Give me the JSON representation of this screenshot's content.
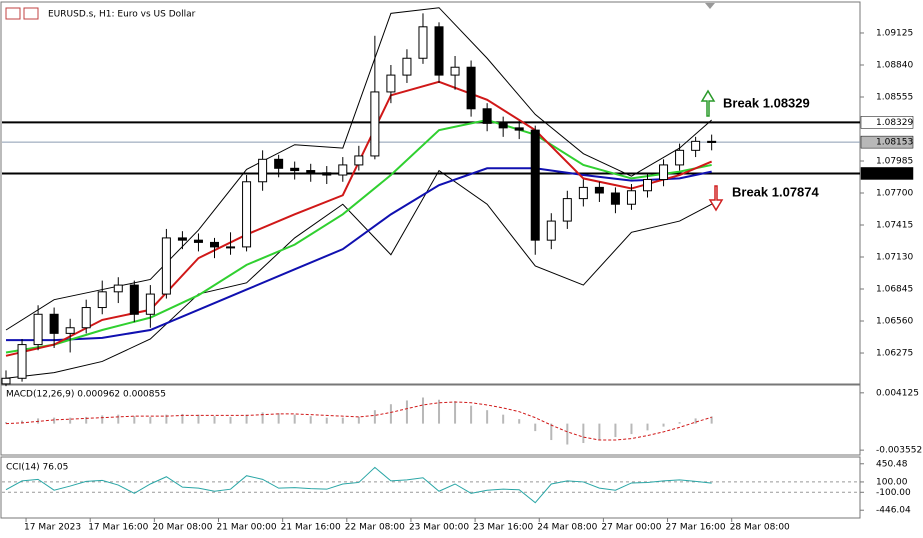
{
  "chart_data": [
    {
      "type": "candlestick",
      "title": "EURUSD.s, H1: Euro vs US Dollar",
      "xlim": [
        0,
        214
      ],
      "xticks": [
        {
          "value": 6,
          "label": "17 Mar 2023"
        },
        {
          "value": 22,
          "label": "17 Mar 16:00"
        },
        {
          "value": 38,
          "label": "20 Mar 08:00"
        },
        {
          "value": 54,
          "label": "21 Mar 00:00"
        },
        {
          "value": 70,
          "label": "21 Mar 16:00"
        },
        {
          "value": 86,
          "label": "22 Mar 08:00"
        },
        {
          "value": 102,
          "label": "23 Mar 00:00"
        },
        {
          "value": 118,
          "label": "23 Mar 16:00"
        },
        {
          "value": 134,
          "label": "24 Mar 08:00"
        },
        {
          "value": 150,
          "label": "27 Mar 00:00"
        },
        {
          "value": 166,
          "label": "27 Mar 16:00"
        },
        {
          "value": 182,
          "label": "28 Mar 08:00"
        }
      ],
      "ylim": [
        1.06008,
        1.09392
      ],
      "yticks": [
        {
          "value": 1.09125,
          "label": "1.09125"
        },
        {
          "value": 1.0884,
          "label": "1.08840"
        },
        {
          "value": 1.08555,
          "label": "1.08555"
        },
        {
          "value": 1.07985,
          "label": "1.07985"
        },
        {
          "value": 1.077,
          "label": "1.07700"
        },
        {
          "value": 1.07415,
          "label": "1.07415"
        },
        {
          "value": 1.0713,
          "label": "1.07130"
        },
        {
          "value": 1.06845,
          "label": "1.06845"
        },
        {
          "value": 1.0656,
          "label": "1.06560"
        },
        {
          "value": 1.06275,
          "label": "1.06275"
        }
      ],
      "x": [
        1,
        5,
        9,
        13,
        17,
        21,
        25,
        29,
        33,
        37,
        41,
        45,
        49,
        53,
        57,
        61,
        65,
        69,
        73,
        77,
        81,
        85,
        89,
        93,
        97,
        101,
        105,
        109,
        113,
        117,
        121,
        125,
        129,
        133,
        137,
        141,
        145,
        149,
        153,
        157,
        161,
        165,
        169,
        173,
        177
      ],
      "open": [
        1.06,
        1.0605,
        1.0635,
        1.0662,
        1.0645,
        1.065,
        1.0668,
        1.0682,
        1.0688,
        1.0662,
        1.068,
        1.073,
        1.0728,
        1.0726,
        1.0722,
        1.0722,
        1.078,
        1.08,
        1.0792,
        1.079,
        1.0788,
        1.0786,
        1.0795,
        1.0803,
        1.086,
        1.0875,
        1.089,
        1.0918,
        1.0875,
        1.0882,
        1.0845,
        1.0832,
        1.0828,
        1.0826,
        1.0728,
        1.0745,
        1.0765,
        1.0775,
        1.077,
        1.076,
        1.0772,
        1.0782,
        1.0795,
        1.0808,
        1.0816
      ],
      "high": [
        1.0612,
        1.064,
        1.067,
        1.0668,
        1.0658,
        1.0675,
        1.0692,
        1.0695,
        1.0692,
        1.0688,
        1.0738,
        1.0736,
        1.0734,
        1.073,
        1.0735,
        1.0786,
        1.0808,
        1.0804,
        1.0798,
        1.0796,
        1.0794,
        1.0802,
        1.0812,
        1.091,
        1.0884,
        1.0898,
        1.093,
        1.0922,
        1.0892,
        1.0888,
        1.085,
        1.0838,
        1.0834,
        1.083,
        1.0752,
        1.0772,
        1.0782,
        1.078,
        1.0775,
        1.0778,
        1.0788,
        1.08,
        1.0814,
        1.082,
        1.0822
      ],
      "low": [
        1.0598,
        1.0602,
        1.063,
        1.0632,
        1.0628,
        1.0645,
        1.0662,
        1.0672,
        1.0655,
        1.065,
        1.0676,
        1.072,
        1.0718,
        1.0712,
        1.0715,
        1.0718,
        1.0772,
        1.0784,
        1.0782,
        1.078,
        1.0778,
        1.078,
        1.079,
        1.08,
        1.085,
        1.0868,
        1.0885,
        1.0868,
        1.0862,
        1.0838,
        1.0825,
        1.082,
        1.0818,
        1.0715,
        1.072,
        1.0738,
        1.0758,
        1.0762,
        1.0752,
        1.0755,
        1.0766,
        1.0776,
        1.079,
        1.0802,
        1.0808
      ],
      "close": [
        1.0605,
        1.0635,
        1.0662,
        1.0645,
        1.065,
        1.0668,
        1.0682,
        1.0688,
        1.0662,
        1.068,
        1.073,
        1.0728,
        1.0726,
        1.0722,
        1.0722,
        1.078,
        1.08,
        1.0792,
        1.079,
        1.0788,
        1.0786,
        1.0795,
        1.0803,
        1.086,
        1.0875,
        1.089,
        1.0918,
        1.0875,
        1.0882,
        1.0845,
        1.0832,
        1.0828,
        1.0826,
        1.0728,
        1.0745,
        1.0765,
        1.0775,
        1.077,
        1.076,
        1.0772,
        1.0782,
        1.0795,
        1.0808,
        1.0816,
        1.0815
      ],
      "series": [
        {
          "color": "#000000",
          "x": [
            1,
            13,
            25,
            37,
            49,
            61,
            73,
            85,
            97,
            109,
            121,
            133,
            145,
            157,
            169,
            177
          ],
          "values": [
            1.0648,
            1.0675,
            1.0684,
            1.0693,
            1.0737,
            1.0791,
            1.0813,
            1.081,
            1.093,
            1.0935,
            1.089,
            1.084,
            1.0805,
            1.0785,
            1.081,
            1.0835
          ]
        },
        {
          "color": "#000000",
          "x": [
            1,
            13,
            25,
            37,
            49,
            61,
            73,
            85,
            97,
            109,
            121,
            133,
            145,
            157,
            169,
            177
          ],
          "values": [
            1.0605,
            1.061,
            1.062,
            1.064,
            1.068,
            1.069,
            1.073,
            1.076,
            1.0715,
            1.079,
            1.076,
            1.0705,
            1.0688,
            1.0735,
            1.0745,
            1.076
          ]
        },
        {
          "color": "#1010b0",
          "x": [
            1,
            13,
            25,
            37,
            49,
            61,
            73,
            85,
            97,
            109,
            121,
            133,
            145,
            157,
            169,
            177
          ],
          "values": [
            1.0639,
            1.0639,
            1.0641,
            1.0648,
            1.0666,
            1.0684,
            1.0702,
            1.072,
            1.0751,
            1.0777,
            1.0792,
            1.0792,
            1.0786,
            1.0781,
            1.0783,
            1.0789
          ]
        },
        {
          "color": "#30d030",
          "x": [
            1,
            13,
            25,
            37,
            49,
            61,
            73,
            85,
            97,
            109,
            121,
            133,
            145,
            157,
            169,
            177
          ],
          "values": [
            1.0628,
            1.0635,
            1.0648,
            1.0659,
            1.0679,
            1.0706,
            1.0724,
            1.0751,
            1.0786,
            1.0826,
            1.0835,
            1.0822,
            1.0795,
            1.0783,
            1.0789,
            1.0795
          ]
        },
        {
          "color": "#d01818",
          "x": [
            1,
            13,
            25,
            37,
            49,
            61,
            73,
            85,
            97,
            109,
            121,
            133,
            145,
            157,
            169,
            177
          ],
          "values": [
            1.0625,
            1.0635,
            1.0657,
            1.0666,
            1.0712,
            1.0733,
            1.0751,
            1.0768,
            1.0857,
            1.0869,
            1.0853,
            1.0826,
            1.0783,
            1.0774,
            1.0786,
            1.0798
          ]
        }
      ],
      "hlines": [
        {
          "value": 1.08329,
          "label": "1.08329",
          "color": "#000000"
        },
        {
          "value": 1.08153,
          "label": "1.08153",
          "color": "#8a9bb0"
        },
        {
          "value": 1.07874,
          "label": "1.07874",
          "color": "#000000"
        }
      ],
      "annotations": [
        "Break 1.08329",
        "Break 1.07874"
      ]
    },
    {
      "type": "macd",
      "label": "MACD(12,26,9) 0.000962 0.000855",
      "ylim": [
        -0.00407,
        0.00504
      ],
      "yticks": [
        0.004125,
        -0.003552
      ],
      "x": [
        1,
        5,
        9,
        13,
        17,
        21,
        25,
        29,
        33,
        37,
        41,
        45,
        49,
        53,
        57,
        61,
        65,
        69,
        73,
        77,
        81,
        85,
        89,
        93,
        97,
        101,
        105,
        109,
        113,
        117,
        121,
        125,
        129,
        133,
        137,
        141,
        145,
        149,
        153,
        157,
        161,
        165,
        169,
        173,
        177
      ],
      "histogram": [
        0.0002,
        0.0004,
        0.0007,
        0.0008,
        0.0008,
        0.0009,
        0.0011,
        0.0012,
        0.001,
        0.0009,
        0.0012,
        0.0013,
        0.0012,
        0.001,
        0.0009,
        0.0012,
        0.0015,
        0.0014,
        0.0012,
        0.001,
        0.0008,
        0.0008,
        0.0009,
        0.0018,
        0.0026,
        0.0031,
        0.0035,
        0.0032,
        0.003,
        0.0024,
        0.0018,
        0.0012,
        0.0006,
        -0.001,
        -0.0022,
        -0.0028,
        -0.0026,
        -0.0022,
        -0.0018,
        -0.0014,
        -0.0009,
        -0.0004,
        0.0002,
        0.0007,
        0.00096
      ],
      "signal": [
        0,
        0.0001,
        0.0003,
        0.0005,
        0.0006,
        0.0007,
        0.0008,
        0.0009,
        0.001,
        0.001,
        0.001,
        0.0011,
        0.0011,
        0.0011,
        0.0011,
        0.0011,
        0.0012,
        0.0013,
        0.0013,
        0.0012,
        0.0011,
        0.001,
        0.0009,
        0.0011,
        0.0015,
        0.002,
        0.0025,
        0.0028,
        0.0029,
        0.0028,
        0.0025,
        0.0021,
        0.0016,
        0.0008,
        -0.0002,
        -0.0011,
        -0.0018,
        -0.0022,
        -0.0022,
        -0.002,
        -0.0016,
        -0.0011,
        -0.0005,
        0.0002,
        0.000855
      ],
      "colors": {
        "histogram": "#b8b8b8",
        "signal": "#d01818"
      }
    },
    {
      "type": "cci",
      "label": "CCI(14) 76.05",
      "ylim": [
        -577,
        562
      ],
      "yticks": [
        {
          "value": 450.48,
          "label": "450.48"
        },
        {
          "value": 100,
          "label": "100.00"
        },
        {
          "value": -100,
          "label": "-100.00"
        },
        {
          "value": -446.04,
          "label": "-446.04"
        }
      ],
      "x": [
        1,
        5,
        9,
        13,
        17,
        21,
        25,
        29,
        33,
        37,
        41,
        45,
        49,
        53,
        57,
        61,
        65,
        69,
        73,
        77,
        81,
        85,
        89,
        93,
        97,
        101,
        105,
        109,
        113,
        117,
        121,
        125,
        129,
        133,
        137,
        141,
        145,
        149,
        153,
        157,
        161,
        165,
        169,
        173,
        177
      ],
      "values": [
        -50,
        120,
        150,
        -60,
        20,
        110,
        130,
        40,
        -120,
        60,
        200,
        0,
        -20,
        -80,
        -40,
        220,
        150,
        -20,
        -10,
        -30,
        -40,
        60,
        90,
        380,
        120,
        140,
        180,
        -80,
        60,
        -120,
        -60,
        -40,
        -50,
        -300,
        60,
        120,
        100,
        -20,
        -60,
        80,
        90,
        120,
        140,
        110,
        76.05
      ],
      "color": "#2aa6a6"
    }
  ]
}
